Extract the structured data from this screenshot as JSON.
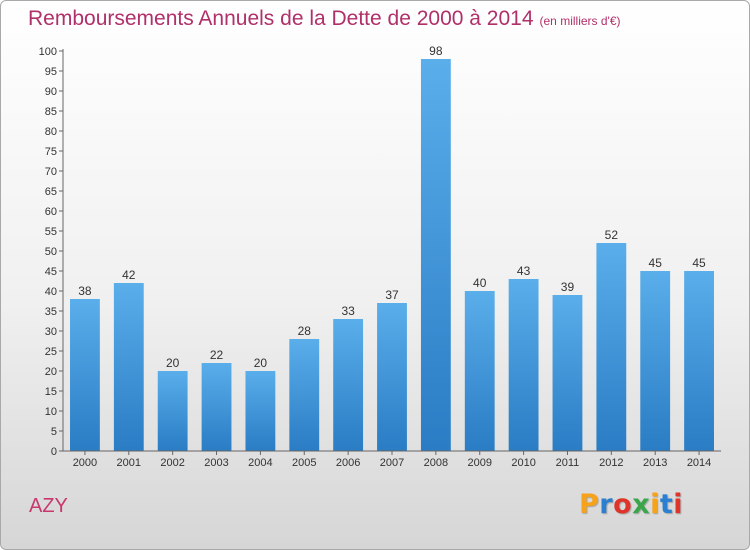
{
  "header": {
    "title": "Remboursements Annuels de la Dette de 2000 à 2014",
    "unit_note": "(en milliers d'€)"
  },
  "footer": {
    "commune_name": "AZY",
    "logo_text": "Proxiti",
    "logo_colors": [
      "#f7a21b",
      "#2a7fd0",
      "#e0342b",
      "#3aa64a",
      "#f7a21b",
      "#2a7fd0",
      "#e0342b"
    ]
  },
  "chart_data": {
    "type": "bar",
    "categories": [
      "2000",
      "2001",
      "2002",
      "2003",
      "2004",
      "2005",
      "2006",
      "2007",
      "2008",
      "2009",
      "2010",
      "2011",
      "2012",
      "2013",
      "2014"
    ],
    "values": [
      38,
      42,
      20,
      22,
      20,
      28,
      33,
      37,
      98,
      40,
      43,
      39,
      52,
      45,
      45
    ],
    "title": "Remboursements Annuels de la Dette de 2000 à 2014",
    "ylim": [
      0,
      100
    ],
    "ytick_step": 5,
    "grid": false,
    "legend": "none",
    "bar_color_top": "#5aaeea",
    "bar_color_bottom": "#2a7cc4"
  }
}
